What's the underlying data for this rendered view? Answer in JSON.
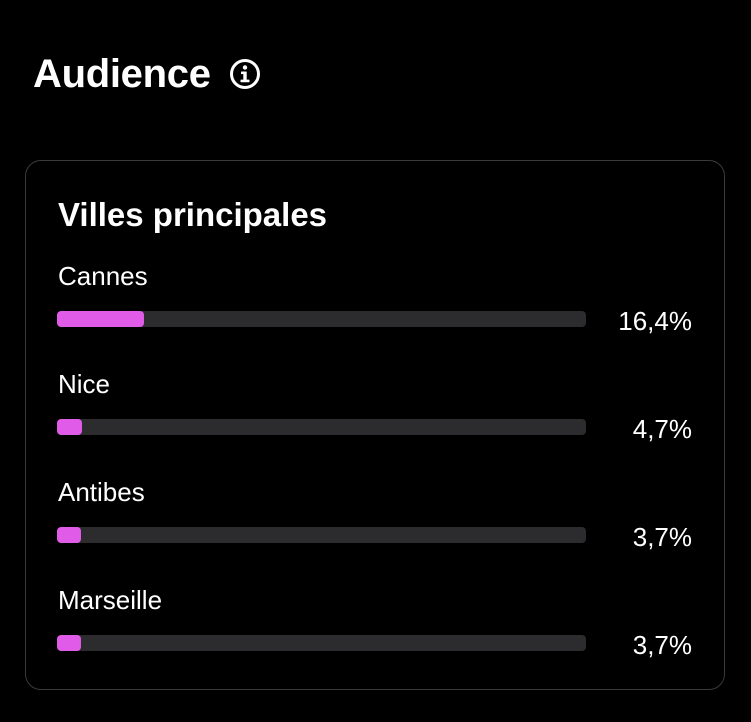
{
  "header": {
    "title": "Audience",
    "info_icon": "info-circle-icon"
  },
  "card": {
    "title": "Villes principales",
    "cities": [
      {
        "name": "Cannes",
        "value_label": "16,4%",
        "value": 16.4
      },
      {
        "name": "Nice",
        "value_label": "4,7%",
        "value": 4.7
      },
      {
        "name": "Antibes",
        "value_label": "3,7%",
        "value": 3.7
      },
      {
        "name": "Marseille",
        "value_label": "3,7%",
        "value": 3.7
      }
    ]
  },
  "colors": {
    "background": "#000000",
    "bar_fill": "#e05ce8",
    "bar_track": "#2c2c2e",
    "card_border": "#3a3a3c",
    "text": "#ffffff"
  }
}
